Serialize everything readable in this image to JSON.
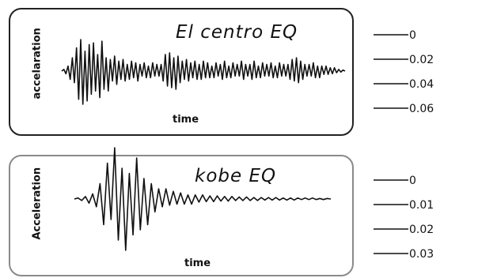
{
  "chart_data": [
    {
      "type": "line",
      "title": "El  centro EQ",
      "xlabel": "time",
      "ylabel": "accelaration",
      "scale_labels": [
        "0",
        "0.02",
        "0.04",
        "0.06"
      ],
      "series": [
        {
          "values": [
            0,
            0.05,
            -0.08,
            0.15,
            -0.25,
            0.4,
            -0.35,
            0.7,
            -0.85,
            0.95,
            -1.0,
            0.6,
            -0.9,
            0.8,
            -0.7,
            0.85,
            -0.6,
            0.5,
            -0.8,
            0.9,
            -0.55,
            0.4,
            -0.6,
            0.35,
            -0.3,
            0.45,
            -0.4,
            0.3,
            -0.25,
            0.35,
            -0.3,
            0.2,
            -0.25,
            0.3,
            -0.2,
            0.25,
            -0.3,
            0.2,
            -0.15,
            0.25,
            -0.2,
            0.15,
            -0.2,
            0.25,
            -0.15,
            0.2,
            -0.15,
            0.2,
            -0.3,
            0.5,
            -0.45,
            0.55,
            -0.5,
            0.4,
            -0.55,
            0.45,
            -0.35,
            0.3,
            -0.25,
            0.35,
            -0.3,
            0.25,
            -0.2,
            0.3,
            -0.25,
            0.2,
            -0.25,
            0.3,
            -0.2,
            0.25,
            -0.2,
            0.15,
            -0.2,
            0.25,
            -0.15,
            0.2,
            -0.25,
            0.3,
            -0.2,
            0.15,
            -0.2,
            0.25,
            -0.15,
            0.2,
            -0.15,
            0.3,
            -0.25,
            0.2,
            -0.15,
            0.2,
            -0.25,
            0.3,
            -0.2,
            0.15,
            -0.2,
            0.25,
            -0.15,
            0.2,
            -0.15,
            0.25,
            -0.2,
            0.15,
            -0.2,
            0.25,
            -0.15,
            0.2,
            -0.15,
            0.2,
            -0.25,
            0.35,
            -0.3,
            0.4,
            -0.35,
            0.3,
            -0.25,
            0.2,
            -0.15,
            0.2,
            -0.15,
            0.25,
            -0.2,
            0.15,
            -0.2,
            0.15,
            -0.1,
            0.15,
            -0.1,
            0.1,
            -0.08,
            0.1,
            -0.05,
            0.05,
            -0.03,
            0.03,
            0
          ]
        }
      ]
    },
    {
      "type": "line",
      "title": "kobe  EQ",
      "xlabel": "time",
      "ylabel": "Acceleration",
      "scale_labels": [
        "0",
        "0.01",
        "0.02",
        "0.03"
      ],
      "series": [
        {
          "values": [
            0,
            0.02,
            -0.03,
            0.05,
            -0.08,
            0.1,
            -0.15,
            0.3,
            -0.5,
            0.7,
            -0.4,
            1.0,
            -0.8,
            0.6,
            -1.0,
            0.5,
            -0.7,
            0.8,
            -0.6,
            0.4,
            -0.5,
            0.3,
            -0.25,
            0.2,
            -0.15,
            0.2,
            -0.12,
            0.15,
            -0.1,
            0.12,
            -0.1,
            0.08,
            -0.1,
            0.08,
            -0.06,
            0.08,
            -0.05,
            0.06,
            -0.05,
            0.06,
            -0.04,
            0.05,
            -0.04,
            0.05,
            -0.03,
            0.04,
            -0.03,
            0.04,
            -0.03,
            0.03,
            -0.03,
            0.03,
            -0.02,
            0.03,
            -0.02,
            0.03,
            -0.02,
            0.02,
            -0.02,
            0.02,
            -0.02,
            0.02,
            -0.01,
            0.02,
            -0.01,
            0.02,
            -0.01,
            0.01,
            -0.01,
            0.01,
            0
          ]
        }
      ]
    }
  ]
}
